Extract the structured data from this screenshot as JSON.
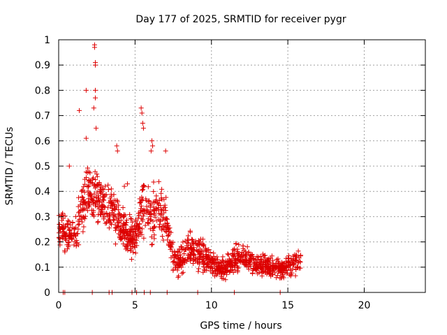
{
  "chart_data": {
    "type": "scatter",
    "title": "Day 177 of 2025, SRMTID for receiver pygr",
    "xlabel": "GPS time / hours",
    "ylabel": "SRMTID / TECUs",
    "xlim": [
      0,
      24
    ],
    "ylim": [
      0,
      1
    ],
    "x_ticks": [
      0,
      5,
      10,
      15,
      20
    ],
    "x_tick_labels": [
      "0",
      "5",
      "10",
      "15",
      "20"
    ],
    "y_ticks": [
      0,
      0.1,
      0.2,
      0.3,
      0.4,
      0.5,
      0.6,
      0.7,
      0.8,
      0.9,
      1
    ],
    "y_tick_labels": [
      "0",
      "0.1",
      "0.2",
      "0.3",
      "0.4",
      "0.5",
      "0.6",
      "0.7",
      "0.8",
      "0.9",
      "1"
    ],
    "grid": true,
    "marker": "+",
    "colors": {
      "series": "#dd0000",
      "grid": "#a0a0a0",
      "axis": "#000000"
    },
    "envelope": {
      "hours": [
        0,
        0.5,
        1,
        1.5,
        2,
        2.5,
        3,
        3.5,
        4,
        4.5,
        5,
        5.5,
        6,
        6.5,
        7,
        7.5,
        8,
        8.5,
        9,
        9.5,
        10,
        10.5,
        11,
        11.5,
        12,
        12.5,
        13,
        13.5,
        14,
        14.5,
        15,
        15.5
      ],
      "center": [
        0.26,
        0.24,
        0.22,
        0.33,
        0.4,
        0.38,
        0.36,
        0.33,
        0.26,
        0.24,
        0.22,
        0.34,
        0.3,
        0.33,
        0.3,
        0.14,
        0.13,
        0.16,
        0.16,
        0.14,
        0.12,
        0.1,
        0.1,
        0.13,
        0.14,
        0.12,
        0.11,
        0.11,
        0.1,
        0.09,
        0.1,
        0.12
      ],
      "spread": [
        0.12,
        0.1,
        0.12,
        0.14,
        0.16,
        0.14,
        0.14,
        0.14,
        0.12,
        0.1,
        0.1,
        0.18,
        0.16,
        0.14,
        0.12,
        0.08,
        0.08,
        0.1,
        0.1,
        0.08,
        0.07,
        0.06,
        0.06,
        0.08,
        0.08,
        0.07,
        0.06,
        0.06,
        0.06,
        0.05,
        0.06,
        0.07
      ]
    },
    "outliers": [
      {
        "x": 2.35,
        "y": 0.98
      },
      {
        "x": 2.35,
        "y": 0.97
      },
      {
        "x": 2.4,
        "y": 0.91
      },
      {
        "x": 2.4,
        "y": 0.9
      },
      {
        "x": 1.8,
        "y": 0.8
      },
      {
        "x": 2.4,
        "y": 0.8
      },
      {
        "x": 2.4,
        "y": 0.77
      },
      {
        "x": 2.3,
        "y": 0.73
      },
      {
        "x": 1.35,
        "y": 0.72
      },
      {
        "x": 5.4,
        "y": 0.73
      },
      {
        "x": 5.45,
        "y": 0.71
      },
      {
        "x": 5.5,
        "y": 0.67
      },
      {
        "x": 5.55,
        "y": 0.65
      },
      {
        "x": 2.45,
        "y": 0.65
      },
      {
        "x": 1.8,
        "y": 0.61
      },
      {
        "x": 6.1,
        "y": 0.6
      },
      {
        "x": 6.15,
        "y": 0.58
      },
      {
        "x": 6.05,
        "y": 0.56
      },
      {
        "x": 3.8,
        "y": 0.58
      },
      {
        "x": 3.85,
        "y": 0.56
      },
      {
        "x": 7.0,
        "y": 0.56
      },
      {
        "x": 0.7,
        "y": 0.5
      },
      {
        "x": 4.3,
        "y": 0.42
      },
      {
        "x": 4.5,
        "y": 0.43
      }
    ],
    "zero_points": [
      0.3,
      0.4,
      2.2,
      3.3,
      3.5,
      4.8,
      5.1,
      5.6,
      6.0,
      7.1,
      9.1,
      11.5,
      14.5
    ]
  }
}
